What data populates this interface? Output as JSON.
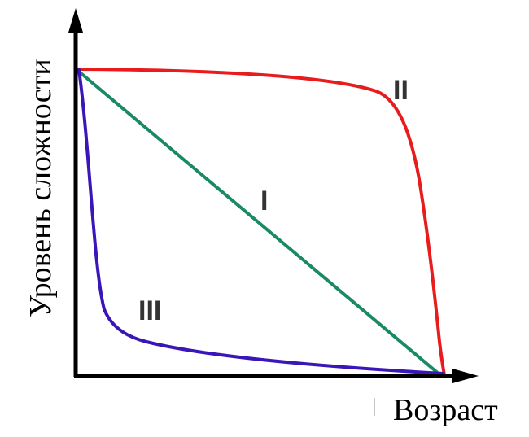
{
  "diagram": {
    "y_axis_label": "Уровень сложности",
    "x_axis_label": "Возраст",
    "curves": [
      {
        "id": "I",
        "label": "I",
        "color": "#1a8a64",
        "shape": "linear-decline"
      },
      {
        "id": "II",
        "label": "II",
        "color": "#e81c1c",
        "shape": "late-steep-decline"
      },
      {
        "id": "III",
        "label": "III",
        "color": "#3a16b8",
        "shape": "early-steep-decline"
      }
    ],
    "axis_color": "#000000"
  }
}
